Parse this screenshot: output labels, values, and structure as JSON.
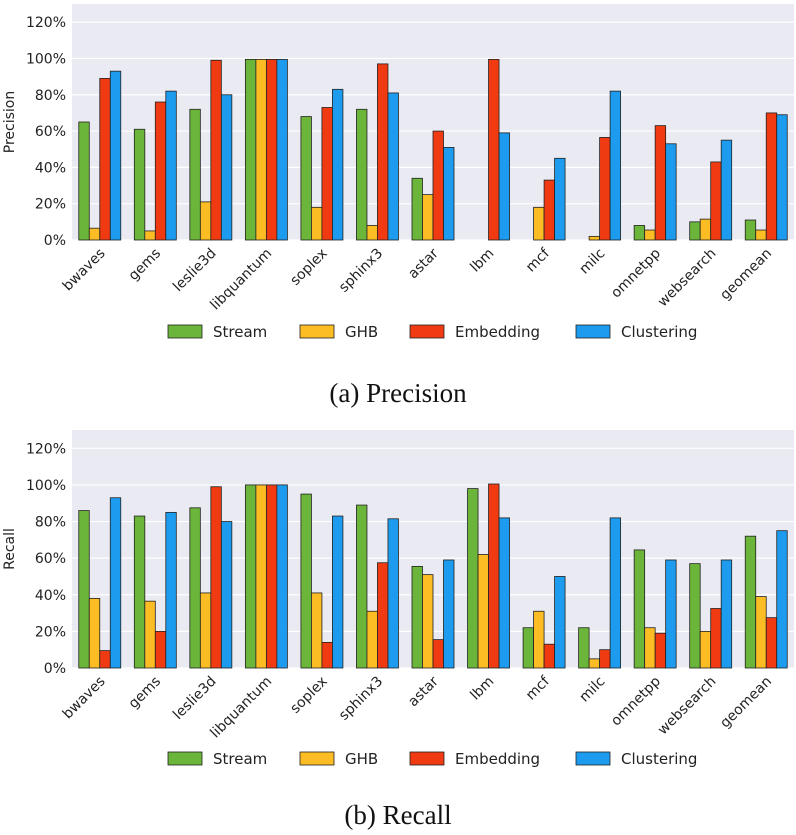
{
  "chart_data": [
    {
      "type": "bar",
      "id": "precision",
      "caption": "(a) Precision",
      "ylabel": "Precision",
      "ylim": [
        0,
        130
      ],
      "yticks": [
        "0%",
        "20%",
        "40%",
        "60%",
        "80%",
        "100%",
        "120%"
      ],
      "categories": [
        "bwaves",
        "gems",
        "leslie3d",
        "libquantum",
        "soplex",
        "sphinx3",
        "astar",
        "lbm",
        "mcf",
        "milc",
        "omnetpp",
        "websearch",
        "geomean"
      ],
      "series": [
        {
          "name": "Stream",
          "color": "#6bb53a",
          "values": [
            65,
            61,
            72,
            99.5,
            68,
            72,
            34,
            0,
            0,
            0,
            8,
            10,
            11
          ]
        },
        {
          "name": "GHB",
          "color": "#fbbc24",
          "values": [
            6.5,
            5,
            21,
            99.5,
            18,
            8,
            25,
            0,
            18,
            2,
            5.5,
            11.5,
            5.5
          ]
        },
        {
          "name": "Embedding",
          "color": "#f03a12",
          "values": [
            89,
            76,
            99,
            99.5,
            73,
            97,
            60,
            99.5,
            33,
            56.5,
            63,
            43,
            70
          ]
        },
        {
          "name": "Clustering",
          "color": "#1c9bef",
          "values": [
            93,
            82,
            80,
            99.5,
            83,
            81,
            51,
            59,
            45,
            82,
            53,
            55,
            69
          ]
        }
      ]
    },
    {
      "type": "bar",
      "id": "recall",
      "caption": "(b) Recall",
      "ylabel": "Recall",
      "ylim": [
        0,
        130
      ],
      "yticks": [
        "0%",
        "20%",
        "40%",
        "60%",
        "80%",
        "100%",
        "120%"
      ],
      "categories": [
        "bwaves",
        "gems",
        "leslie3d",
        "libquantum",
        "soplex",
        "sphinx3",
        "astar",
        "lbm",
        "mcf",
        "milc",
        "omnetpp",
        "websearch",
        "geomean"
      ],
      "series": [
        {
          "name": "Stream",
          "color": "#6bb53a",
          "values": [
            86,
            83,
            87.5,
            100,
            95,
            89,
            55.5,
            98,
            22,
            22,
            64.5,
            57,
            72
          ]
        },
        {
          "name": "GHB",
          "color": "#fbbc24",
          "values": [
            38,
            36.5,
            41,
            100,
            41,
            31,
            51,
            62,
            31,
            5,
            22,
            20,
            39
          ]
        },
        {
          "name": "Embedding",
          "color": "#f03a12",
          "values": [
            9.5,
            20,
            99,
            100,
            14,
            57.5,
            15.5,
            100.5,
            13,
            10,
            19,
            32.5,
            27.5
          ]
        },
        {
          "name": "Clustering",
          "color": "#1c9bef",
          "values": [
            93,
            85,
            80,
            100,
            83,
            81.5,
            59,
            82,
            50,
            82,
            59,
            59,
            75
          ]
        }
      ]
    }
  ]
}
